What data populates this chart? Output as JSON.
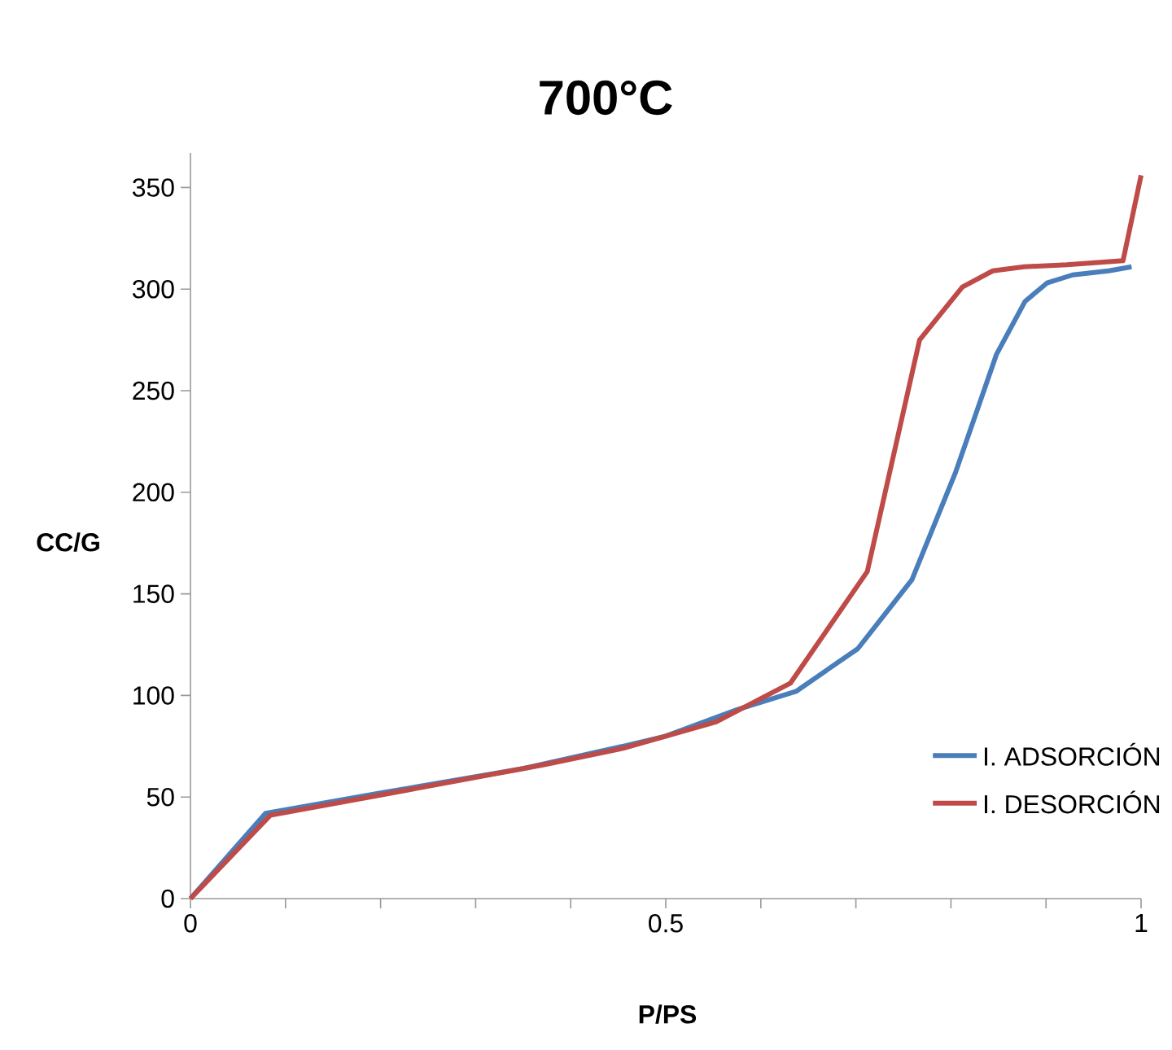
{
  "chart_data": {
    "type": "line",
    "title": "700°C",
    "xlabel": "P/PS",
    "ylabel": "CC/G",
    "xlim": [
      0,
      1
    ],
    "ylim": [
      0,
      367
    ],
    "xticks": [
      0,
      {
        "value": 0.1,
        "label": null
      },
      {
        "value": 0.2,
        "label": null
      },
      {
        "value": 0.3,
        "label": null
      },
      {
        "value": 0.4,
        "label": null
      },
      0.5,
      {
        "value": 0.6,
        "label": null
      },
      {
        "value": 0.7,
        "label": null
      },
      {
        "value": 0.8,
        "label": null
      },
      {
        "value": 0.9,
        "label": null
      },
      1
    ],
    "yticks": [
      0,
      50,
      100,
      150,
      200,
      250,
      300,
      350
    ],
    "legend": "right",
    "marker": "none",
    "series": [
      {
        "name": "I. ADSORCIÓN",
        "color": "#4a7ebb",
        "x": [
          0,
          0.079,
          0.2,
          0.35,
          0.455,
          0.5,
          0.575,
          0.637,
          0.702,
          0.759,
          0.805,
          0.848,
          0.878,
          0.901,
          0.928,
          0.966,
          0.99
        ],
        "values": [
          0,
          42,
          52,
          64,
          75,
          80,
          93,
          102,
          123,
          157,
          210,
          268,
          294,
          303,
          307,
          309,
          311
        ]
      },
      {
        "name": "I. DESORCIÓN",
        "color": "#be4b48",
        "x": [
          0,
          0.084,
          0.2,
          0.373,
          0.455,
          0.553,
          0.631,
          0.712,
          0.767,
          0.812,
          0.844,
          0.877,
          0.922,
          0.981,
          1.0
        ],
        "values": [
          0,
          41,
          51,
          66,
          74,
          87,
          106,
          161,
          275,
          301,
          309,
          311,
          312,
          314,
          356
        ]
      }
    ]
  }
}
